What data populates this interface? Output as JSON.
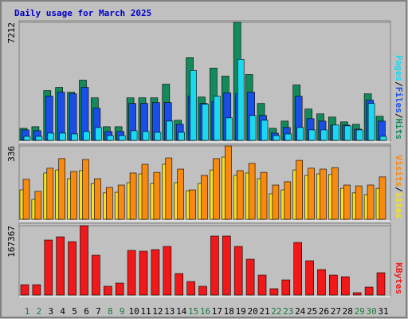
{
  "chart_data": [
    {
      "type": "bar",
      "title": "Daily usage for March 2025",
      "legend_separator": "/",
      "categories": [
        "1",
        "2",
        "3",
        "4",
        "5",
        "6",
        "7",
        "8",
        "9",
        "10",
        "11",
        "12",
        "13",
        "14",
        "15",
        "16",
        "17",
        "18",
        "19",
        "20",
        "21",
        "22",
        "23",
        "24",
        "25",
        "26",
        "27",
        "28",
        "29",
        "30",
        "31"
      ],
      "category_colors": [
        "#1a7a3a",
        "#1a7a3a",
        "#000000",
        "#000000",
        "#000000",
        "#000000",
        "#000000",
        "#1a7a3a",
        "#1a7a3a",
        "#000000",
        "#000000",
        "#000000",
        "#000000",
        "#000000",
        "#1a7a3a",
        "#1a7a3a",
        "#000000",
        "#000000",
        "#000000",
        "#000000",
        "#000000",
        "#1a7a3a",
        "#1a7a3a",
        "#000000",
        "#000000",
        "#000000",
        "#000000",
        "#000000",
        "#1a7a3a",
        "#1a7a3a",
        "#000000"
      ],
      "ylim": [
        0,
        7212
      ],
      "yticks": [
        7212
      ],
      "series": [
        {
          "name": "Hits",
          "color": "#138a5a",
          "values": [
            736,
            834,
            3042,
            3238,
            2944,
            3680,
            2600,
            834,
            834,
            2600,
            2600,
            2600,
            3434,
            1227,
            5053,
            2649,
            4415,
            3925,
            7212,
            4023,
            2257,
            736,
            1177,
            3385,
            1913,
            1619,
            1423,
            1128,
            981,
            2845,
            1472
          ]
        },
        {
          "name": "Files",
          "color": "#1a4ee8",
          "values": [
            638,
            589,
            2698,
            2944,
            2845,
            3238,
            1962,
            540,
            540,
            2257,
            2257,
            2306,
            2306,
            981,
            2698,
            2257,
            2355,
            2895,
            2845,
            2944,
            1521,
            442,
            785,
            2698,
            1325,
            1177,
            932,
            932,
            687,
            2453,
            1177
          ]
        },
        {
          "name": "Pages",
          "color": "#1ad8f0",
          "values": [
            245,
            245,
            442,
            442,
            392,
            540,
            785,
            294,
            294,
            589,
            540,
            491,
            1177,
            491,
            4268,
            2208,
            2698,
            1374,
            4955,
            1521,
            1227,
            294,
            392,
            785,
            638,
            638,
            932,
            883,
            638,
            2257,
            245
          ]
        }
      ]
    },
    {
      "type": "bar",
      "legend_separator": "/",
      "ylim": [
        0,
        336
      ],
      "yticks": [
        336
      ],
      "series": [
        {
          "name": "Sites",
          "color": "#f8e020",
          "values": [
            135,
            91,
            212,
            226,
            186,
            223,
            164,
            121,
            124,
            168,
            208,
            164,
            252,
            168,
            131,
            164,
            226,
            285,
            201,
            212,
            186,
            117,
            135,
            226,
            201,
            208,
            205,
            142,
            121,
            113,
            142
          ]
        },
        {
          "name": "Visits",
          "color": "#f88a10",
          "values": [
            183,
            128,
            234,
            278,
            219,
            274,
            186,
            146,
            157,
            212,
            252,
            215,
            281,
            230,
            135,
            201,
            278,
            336,
            223,
            256,
            215,
            157,
            172,
            270,
            234,
            230,
            237,
            157,
            153,
            157,
            194
          ]
        }
      ]
    },
    {
      "type": "bar",
      "ylim": [
        0,
        167367
      ],
      "yticks": [
        167367
      ],
      "series": [
        {
          "name": "KBytes",
          "color": "#f01818",
          "values": [
            25012,
            25012,
            132756,
            140452,
            128908,
            167367,
            96200,
            21164,
            28860,
            107744,
            105820,
            109668,
            117364,
            51948,
            32708,
            21164,
            142376,
            142376,
            117364,
            86580,
            48100,
            15392,
            36556,
            126984,
            82732,
            61568,
            48100,
            44252,
            5772,
            19240,
            53872
          ]
        }
      ]
    }
  ]
}
